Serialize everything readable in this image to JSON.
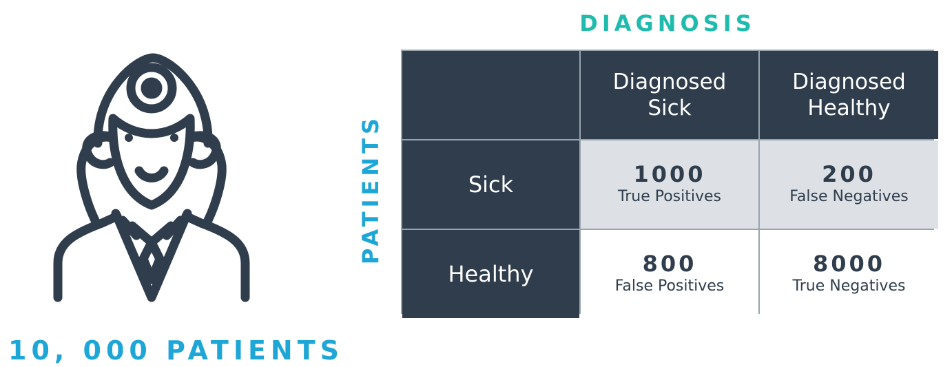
{
  "diagnosis_heading": "DIAGNOSIS",
  "patients_heading": "PATIENTS",
  "patients_caption": "10, 000 PATIENTS",
  "icon": "doctor-icon",
  "colors": {
    "diagnosis_heading": "#1fbcae",
    "patients_text": "#1ea6d6",
    "header_fill": "#2f3d4c",
    "highlight_fill": "#dde1e6",
    "border": "#9aa4ae"
  },
  "matrix": {
    "column_headers": [
      "Diagnosed Sick",
      "Diagnosed Healthy"
    ],
    "rows": [
      {
        "label": "Sick",
        "cells": [
          {
            "count": "1000",
            "outcome": "True Positives"
          },
          {
            "count": "200",
            "outcome": "False Negatives"
          }
        ]
      },
      {
        "label": "Healthy",
        "cells": [
          {
            "count": "800",
            "outcome": "False Positives"
          },
          {
            "count": "8000",
            "outcome": "True Negatives"
          }
        ]
      }
    ]
  }
}
